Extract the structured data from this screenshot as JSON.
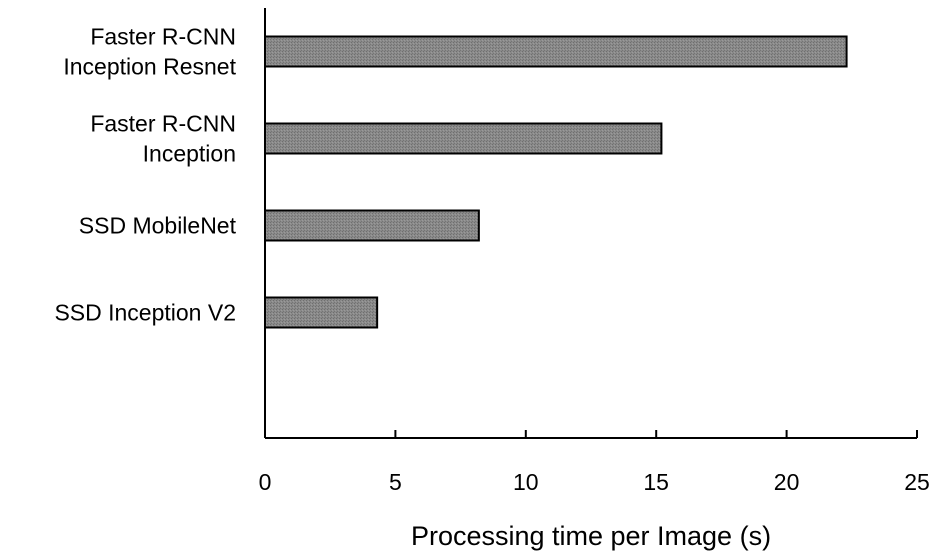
{
  "chart_data": {
    "type": "bar",
    "orientation": "horizontal",
    "title": "",
    "xlabel": "Processing time per Image (s)",
    "ylabel": "",
    "xlim": [
      0,
      25
    ],
    "x_ticks": [
      "0",
      "5",
      "10",
      "15",
      "20",
      "25"
    ],
    "categories": [
      [
        "Faster R-CNN",
        "Inception Resnet"
      ],
      [
        "Faster R-CNN",
        "Inception"
      ],
      [
        "SSD MobileNet"
      ],
      [
        "SSD Inception V2"
      ]
    ],
    "values": [
      22.3,
      15.2,
      8.2,
      4.3
    ],
    "grid": false,
    "legend": "none",
    "colors": {
      "bar_fill": "#808080",
      "bar_stroke": "#000000",
      "axis": "#000000"
    }
  }
}
